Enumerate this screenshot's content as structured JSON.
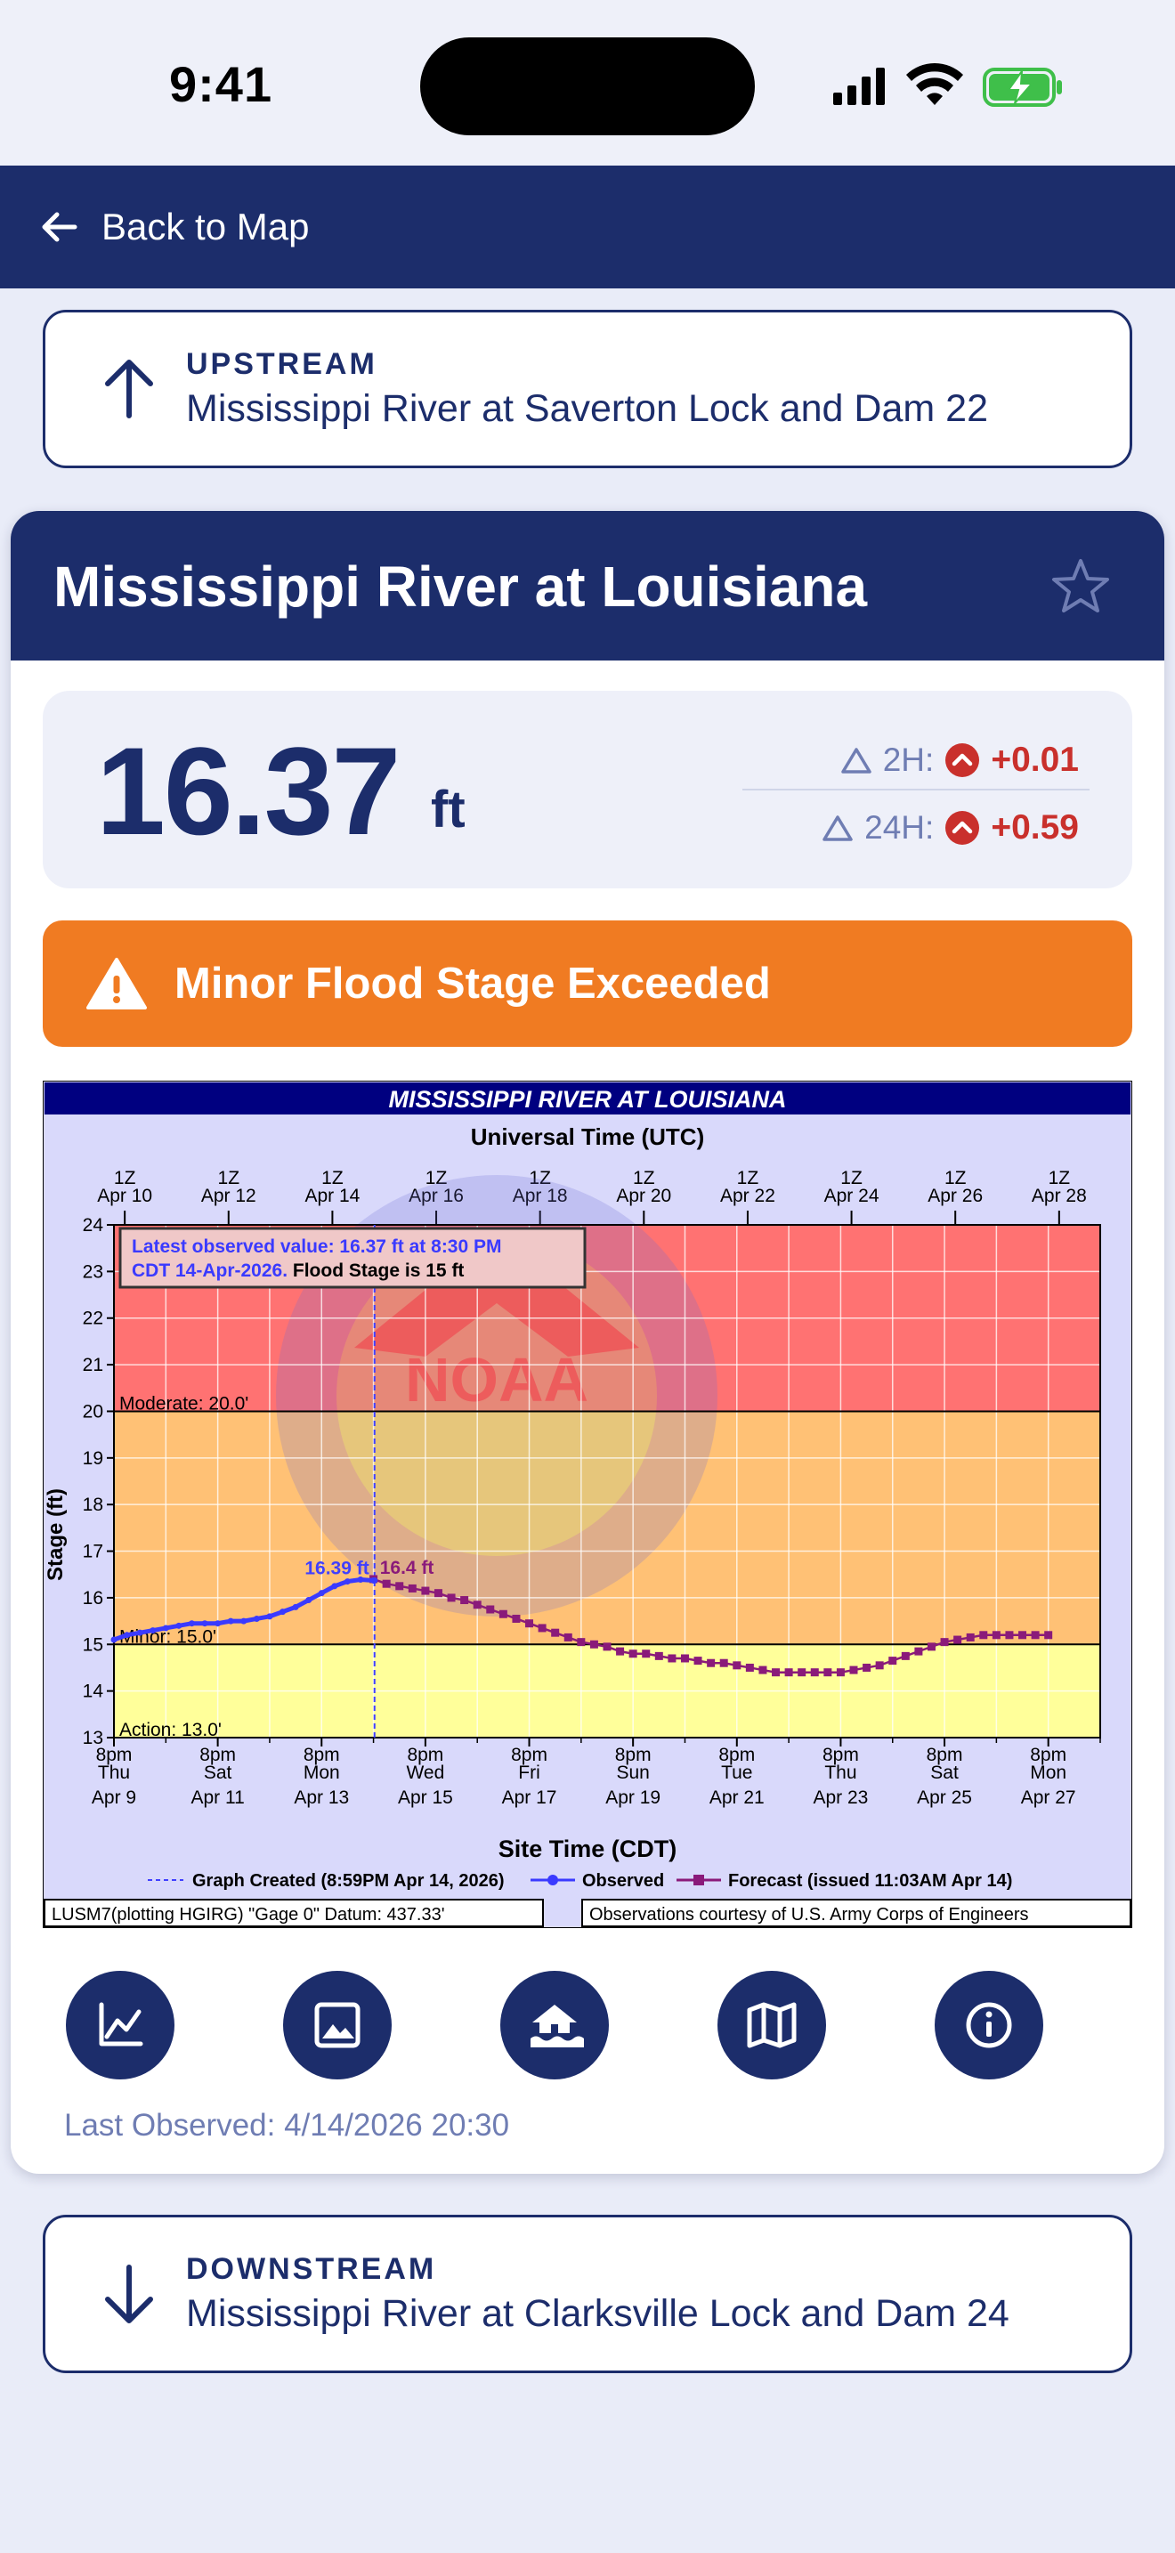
{
  "status_bar": {
    "time": "9:41"
  },
  "nav": {
    "back_label": "Back to Map"
  },
  "upstream": {
    "kicker": "UPSTREAM",
    "name": "Mississippi River at Saverton Lock and Dam 22"
  },
  "gauge": {
    "title": "Mississippi River at Louisiana",
    "stage_value": "16.37",
    "stage_unit": "ft",
    "delta_2h_label": "2H:",
    "delta_2h_value": "+0.01",
    "delta_24h_label": "24H:",
    "delta_24h_value": "+0.59",
    "flood_status": "Minor Flood Stage Exceeded",
    "last_observed": "Last Observed: 4/14/2026 20:30"
  },
  "downstream": {
    "kicker": "DOWNSTREAM",
    "name": "Mississippi River at Clarksville Lock and Dam 24"
  },
  "actions": [
    {
      "name": "hydrograph-button",
      "icon": "line-chart-icon"
    },
    {
      "name": "photo-button",
      "icon": "image-icon"
    },
    {
      "name": "flood-impacts-button",
      "icon": "flooded-house-icon"
    },
    {
      "name": "map-button",
      "icon": "map-icon"
    },
    {
      "name": "info-button",
      "icon": "info-icon"
    }
  ],
  "colors": {
    "navy": "#1c2d6b",
    "flood_orange": "#f07b22",
    "rise_red": "#c9302c",
    "moderate_band": "#ff7272",
    "minor_band": "#ffc175",
    "action_band": "#ffff9a",
    "observed": "#3a3aff",
    "forecast": "#8a1a7a"
  },
  "chart_data": {
    "type": "line",
    "title": "MISSISSIPPI RIVER AT LOUISIANA",
    "top_axis_title": "Universal Time (UTC)",
    "top_ticks": [
      "1Z Apr 10",
      "1Z Apr 12",
      "1Z Apr 14",
      "1Z Apr 16",
      "1Z Apr 18",
      "1Z Apr 20",
      "1Z Apr 22",
      "1Z Apr 24",
      "1Z Apr 26",
      "1Z Apr 28"
    ],
    "xlabel": "Site Time (CDT)",
    "x_ticks": [
      [
        "8pm",
        "Thu",
        "Apr 9"
      ],
      [
        "8pm",
        "Sat",
        "Apr 11"
      ],
      [
        "8pm",
        "Mon",
        "Apr 13"
      ],
      [
        "8pm",
        "Wed",
        "Apr 15"
      ],
      [
        "8pm",
        "Fri",
        "Apr 17"
      ],
      [
        "8pm",
        "Sun",
        "Apr 19"
      ],
      [
        "8pm",
        "Tue",
        "Apr 21"
      ],
      [
        "8pm",
        "Thu",
        "Apr 23"
      ],
      [
        "8pm",
        "Sat",
        "Apr 25"
      ],
      [
        "8pm",
        "Mon",
        "Apr 27"
      ]
    ],
    "ylabel": "Stage (ft)",
    "ylim": [
      13,
      24
    ],
    "xlim_days_label": "Apr 9 8pm to Apr 28 8pm",
    "thresholds": [
      {
        "label": "Moderate: 20.0'",
        "value": 20.0
      },
      {
        "label": "Minor: 15.0'",
        "value": 15.0
      },
      {
        "label": "Action: 13.0'",
        "value": 13.0
      }
    ],
    "info_box_line1": "Latest observed value: 16.37 ft at 8:30 PM",
    "info_box_line2a": "CDT 14-Apr-2026.",
    "info_box_line2b": " Flood Stage is 15 ft",
    "peak_observed_label": "16.39 ft",
    "forecast_start_label": "16.4 ft",
    "legend": {
      "created": "Graph Created (8:59PM Apr 14, 2026)",
      "observed": "Observed",
      "forecast": "Forecast (issued 11:03AM Apr 14)"
    },
    "footer_left": "LUSM7(plotting HGIRG) \"Gage 0\" Datum: 437.33'",
    "footer_right": "Observations courtesy of U.S. Army Corps of Engineers",
    "watermark": "NOAA",
    "series": [
      {
        "name": "Observed",
        "x": [
          0,
          0.25,
          0.5,
          0.75,
          1.0,
          1.25,
          1.5,
          1.75,
          2.0,
          2.25,
          2.5,
          2.75,
          3.0,
          3.25,
          3.5,
          3.75,
          4.0,
          4.25,
          4.5,
          4.75,
          5.0,
          5.02
        ],
        "y": [
          15.1,
          15.2,
          15.25,
          15.3,
          15.35,
          15.4,
          15.45,
          15.45,
          15.45,
          15.5,
          15.5,
          15.55,
          15.6,
          15.7,
          15.8,
          15.95,
          16.1,
          16.25,
          16.35,
          16.39,
          16.37,
          16.37
        ]
      },
      {
        "name": "Forecast",
        "x": [
          5.0,
          5.25,
          5.5,
          5.75,
          6.0,
          6.25,
          6.5,
          6.75,
          7.0,
          7.25,
          7.5,
          7.75,
          8.0,
          8.25,
          8.5,
          8.75,
          9.0,
          9.25,
          9.5,
          9.75,
          10.0,
          10.25,
          10.5,
          10.75,
          11.0,
          11.25,
          11.5,
          11.75,
          12.0,
          12.25,
          12.5,
          12.75,
          13.0,
          13.25,
          13.5,
          13.75,
          14.0,
          14.25,
          14.5,
          14.75,
          15.0,
          15.25,
          15.5,
          15.75,
          16.0,
          16.25,
          16.5,
          16.75,
          17.0,
          17.25,
          17.5,
          17.75,
          18.0
        ],
        "y": [
          16.4,
          16.3,
          16.25,
          16.2,
          16.15,
          16.1,
          16.0,
          15.95,
          15.85,
          15.75,
          15.65,
          15.55,
          15.45,
          15.35,
          15.25,
          15.15,
          15.05,
          15.0,
          14.95,
          14.85,
          14.8,
          14.8,
          14.75,
          14.7,
          14.7,
          14.65,
          14.6,
          14.6,
          14.55,
          14.5,
          14.45,
          14.4,
          14.4,
          14.4,
          14.4,
          14.4,
          14.4,
          14.45,
          14.5,
          14.55,
          14.65,
          14.75,
          14.85,
          14.95,
          15.05,
          15.1,
          15.15,
          15.2,
          15.2,
          15.2,
          15.2,
          15.2,
          15.2
        ]
      }
    ]
  }
}
